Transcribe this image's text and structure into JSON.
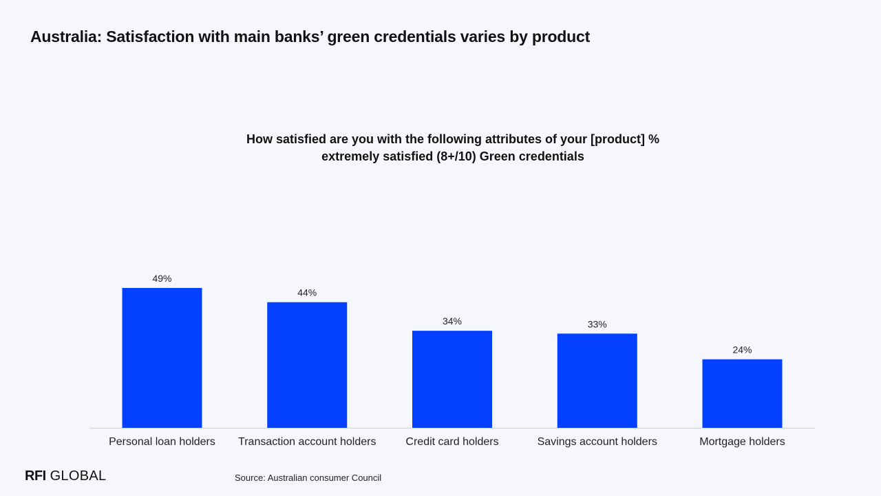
{
  "page": {
    "title": "Australia: Satisfaction with main banks’ green credentials varies by product",
    "source": "Source: Australian consumer Council",
    "logo": {
      "strong": "RFI",
      "light": "GLOBAL"
    }
  },
  "colors": {
    "background": "#f5f7fc",
    "bar": "#0340ff",
    "axis": "#d0d0d0",
    "text": "#111111"
  },
  "chart_data": {
    "type": "bar",
    "title_lines": [
      "How satisfied are you with the following attributes of your [product] %",
      "extremely satisfied (8+/10) Green credentials"
    ],
    "categories": [
      "Personal loan holders",
      "Transaction account holders",
      "Credit card holders",
      "Savings account holders",
      "Mortgage holders"
    ],
    "values": [
      49,
      44,
      34,
      33,
      24
    ],
    "value_labels": [
      "49%",
      "44%",
      "34%",
      "33%",
      "24%"
    ],
    "ylim": [
      0,
      49
    ],
    "xlabel": "",
    "ylabel": "",
    "grid": false,
    "legend": "none"
  }
}
